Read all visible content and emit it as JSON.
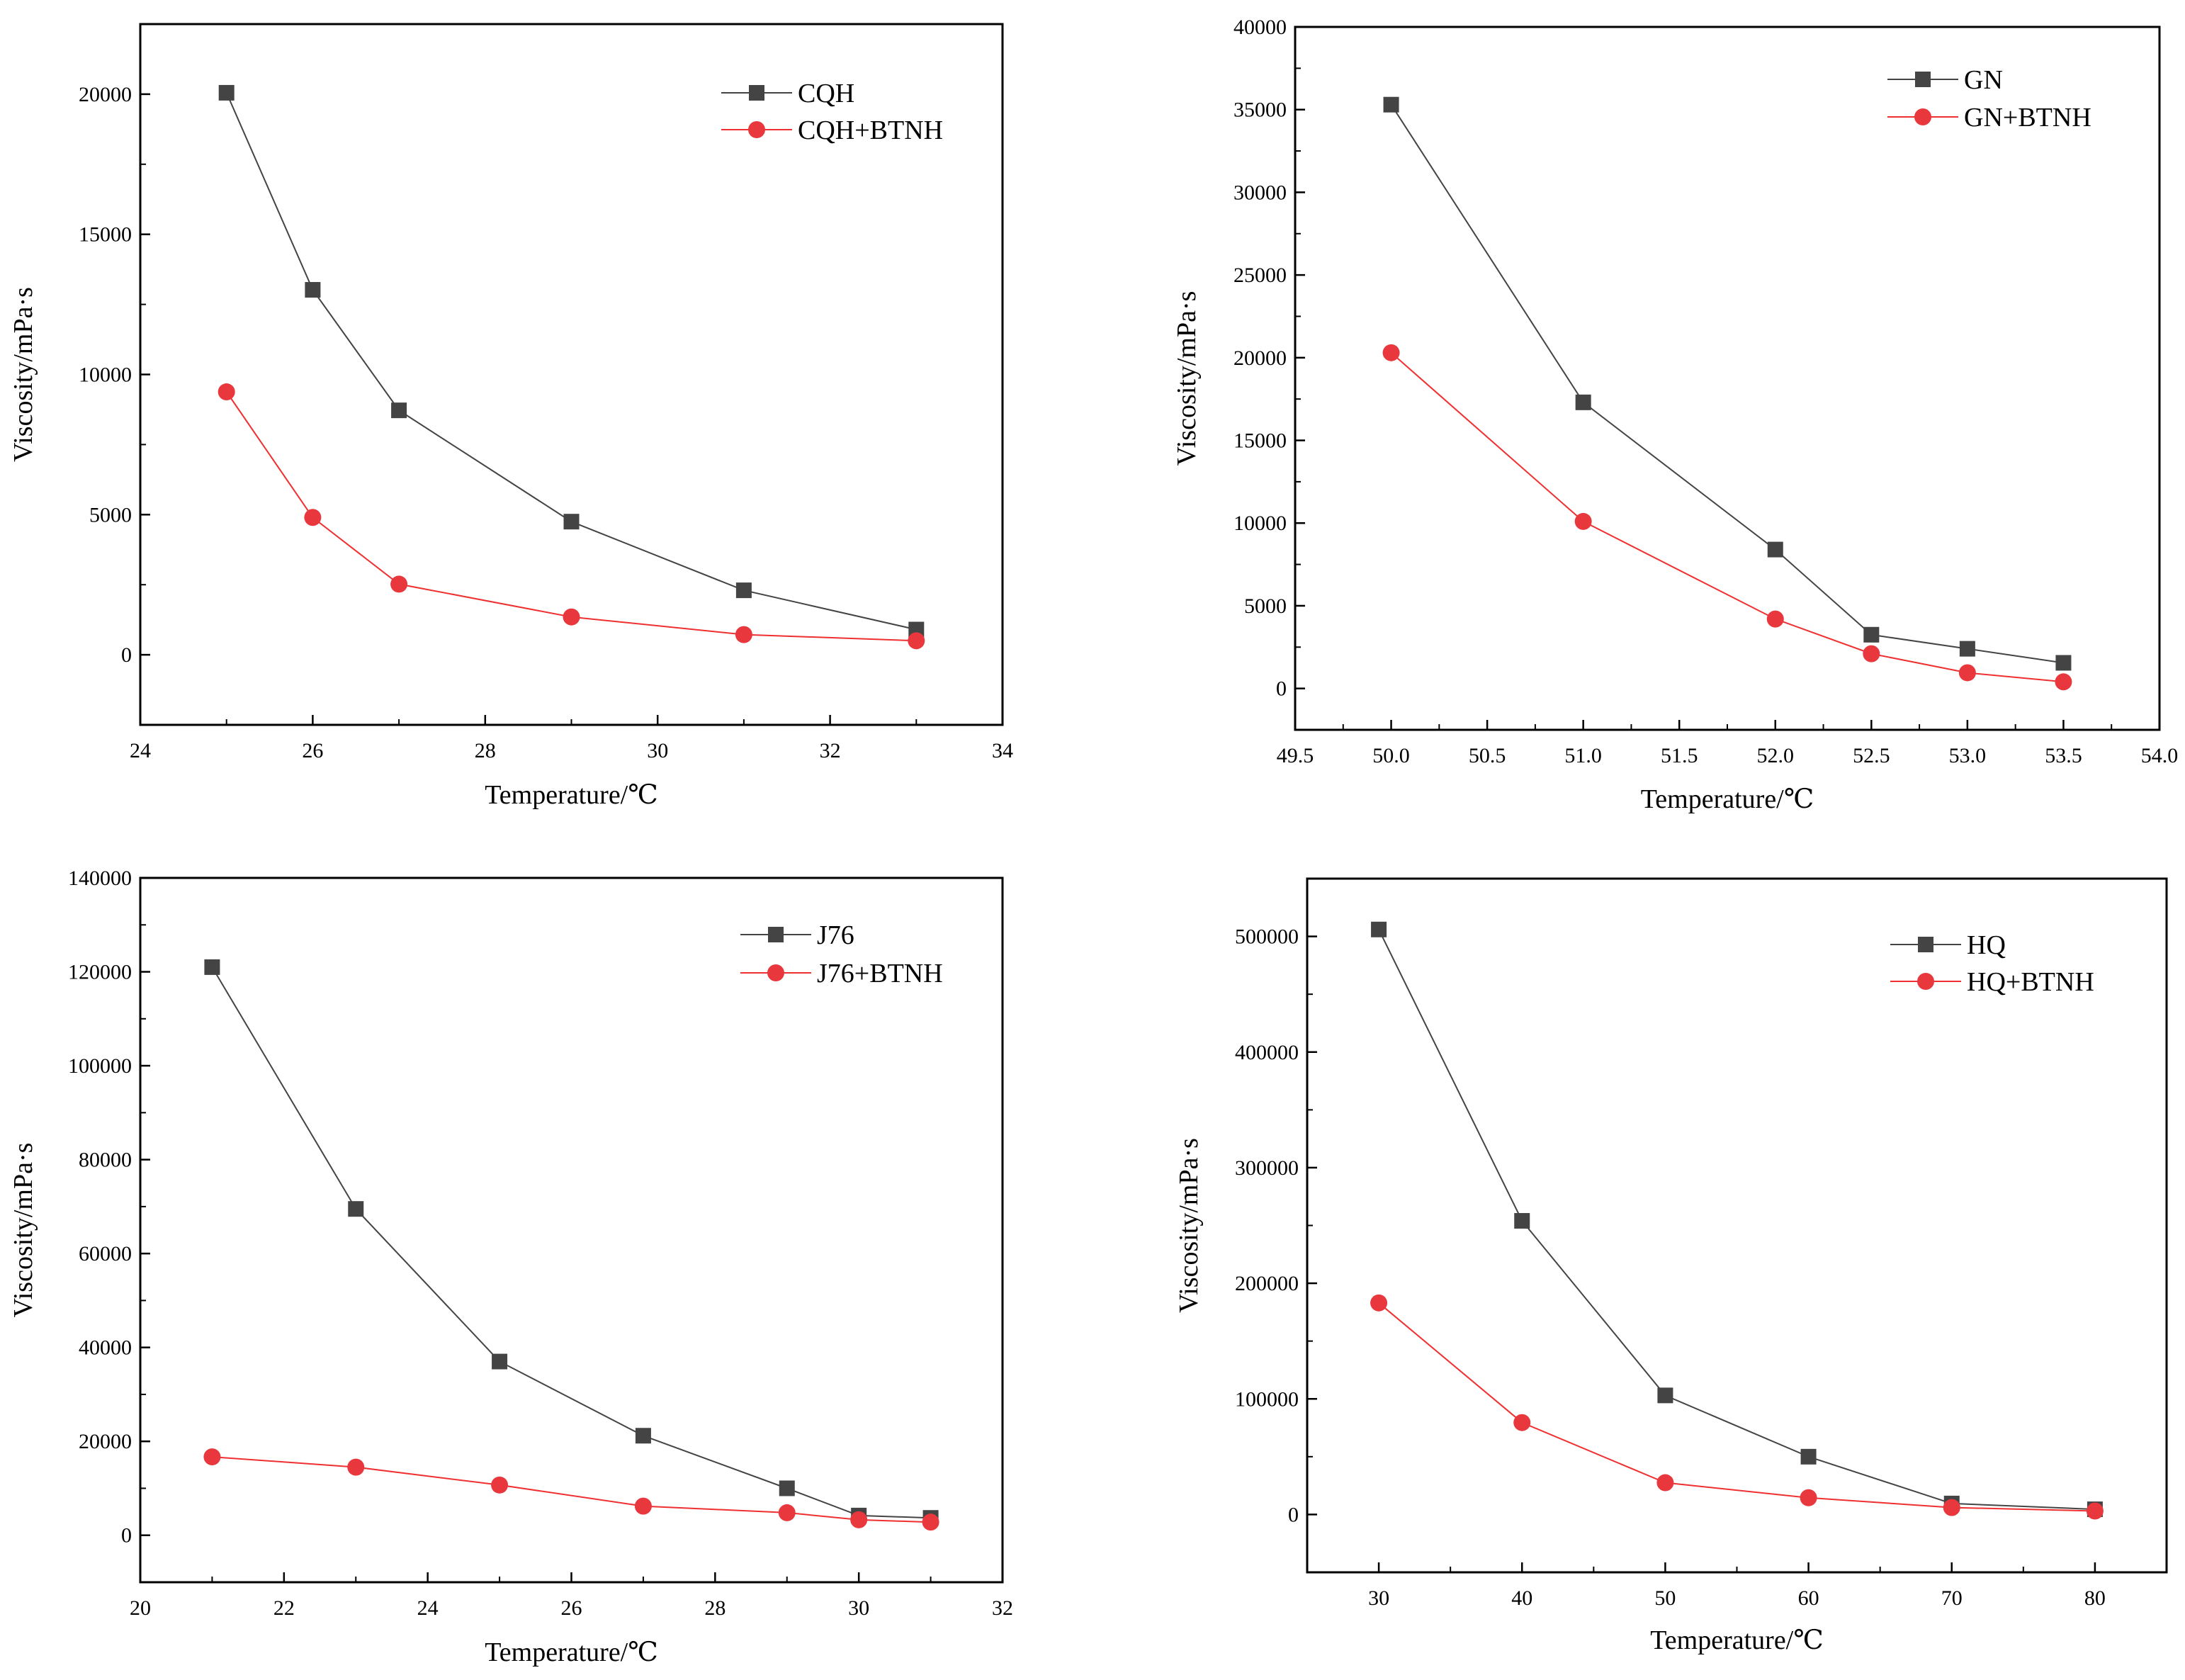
{
  "colors": {
    "series_black": "#444444",
    "series_red": "#e8383d",
    "line_red": "#f03030",
    "frame": "#000000"
  },
  "chart_data": [
    {
      "type": "line",
      "xlabel": "Temperature/℃",
      "ylabel": "Viscosity/mPa·s",
      "xlim": [
        24,
        34
      ],
      "ylim": [
        -2500,
        22500
      ],
      "xticks": [
        24,
        26,
        28,
        30,
        32,
        34
      ],
      "xtick_labels": [
        "24",
        "26",
        "28",
        "30",
        "32",
        "34"
      ],
      "yticks": [
        0,
        5000,
        10000,
        15000,
        20000
      ],
      "ytick_labels": [
        "0",
        "5000",
        "10000",
        "15000",
        "20000"
      ],
      "legend_position": "top-right",
      "series": [
        {
          "name": "CQH",
          "marker": "square",
          "x": [
            25,
            26,
            27,
            29,
            31,
            33
          ],
          "y": [
            20050,
            13020,
            8720,
            4750,
            2300,
            900
          ]
        },
        {
          "name": "CQH+BTNH",
          "marker": "circle",
          "x": [
            25,
            26,
            27,
            29,
            31,
            33
          ],
          "y": [
            9380,
            4900,
            2520,
            1350,
            720,
            500
          ]
        }
      ]
    },
    {
      "type": "line",
      "xlabel": "Temperature/℃",
      "ylabel": "Viscosity/mPa·s",
      "xlim": [
        49.5,
        54.0
      ],
      "ylim": [
        -2500,
        40000
      ],
      "xticks": [
        49.5,
        50.0,
        50.5,
        51.0,
        51.5,
        52.0,
        52.5,
        53.0,
        53.5,
        54.0
      ],
      "xtick_labels": [
        "49.5",
        "50.0",
        "50.5",
        "51.0",
        "51.5",
        "52.0",
        "52.5",
        "53.0",
        "53.5",
        "54.0"
      ],
      "yticks": [
        0,
        5000,
        10000,
        15000,
        20000,
        25000,
        30000,
        35000,
        40000
      ],
      "ytick_labels": [
        "0",
        "5000",
        "10000",
        "15000",
        "20000",
        "25000",
        "30000",
        "35000",
        "40000"
      ],
      "legend_position": "top-right",
      "series": [
        {
          "name": "GN",
          "marker": "square",
          "x": [
            50.0,
            51.0,
            52.0,
            52.5,
            53.0,
            53.5
          ],
          "y": [
            35300,
            17300,
            8400,
            3250,
            2400,
            1550
          ]
        },
        {
          "name": "GN+BTNH",
          "marker": "circle",
          "x": [
            50.0,
            51.0,
            52.0,
            52.5,
            53.0,
            53.5
          ],
          "y": [
            20300,
            10100,
            4200,
            2100,
            950,
            400
          ]
        }
      ]
    },
    {
      "type": "line",
      "xlabel": "Temperature/℃",
      "ylabel": "Viscosity/mPa·s",
      "xlim": [
        20,
        32
      ],
      "ylim": [
        -10000,
        140000
      ],
      "xticks": [
        20,
        22,
        24,
        26,
        28,
        30,
        32
      ],
      "xtick_labels": [
        "20",
        "22",
        "24",
        "26",
        "28",
        "30",
        "32"
      ],
      "yticks": [
        0,
        20000,
        40000,
        60000,
        80000,
        100000,
        120000,
        140000
      ],
      "ytick_labels": [
        "0",
        "20000",
        "40000",
        "60000",
        "80000",
        "100000",
        "120000",
        "140000"
      ],
      "legend_position": "top-right",
      "series": [
        {
          "name": "J76",
          "marker": "square",
          "x": [
            21,
            23,
            25,
            27,
            29,
            30,
            31
          ],
          "y": [
            121000,
            69500,
            37000,
            21200,
            10000,
            4200,
            3700
          ]
        },
        {
          "name": "J76+BTNH",
          "marker": "circle",
          "x": [
            21,
            23,
            25,
            27,
            29,
            30,
            31
          ],
          "y": [
            16700,
            14500,
            10700,
            6200,
            4800,
            3300,
            2800
          ]
        }
      ]
    },
    {
      "type": "line",
      "xlabel": "Temperature/℃",
      "ylabel": "Viscosity/mPa·s",
      "xlim": [
        25,
        85
      ],
      "ylim": [
        -50000,
        550000
      ],
      "xticks": [
        30,
        40,
        50,
        60,
        70,
        80
      ],
      "xtick_labels": [
        "30",
        "40",
        "50",
        "60",
        "70",
        "80"
      ],
      "yticks": [
        0,
        100000,
        200000,
        300000,
        400000,
        500000
      ],
      "ytick_labels": [
        "0",
        "100000",
        "200000",
        "300000",
        "400000",
        "500000"
      ],
      "legend_position": "top-right",
      "series": [
        {
          "name": "HQ",
          "marker": "square",
          "x": [
            30,
            40,
            50,
            60,
            70,
            80
          ],
          "y": [
            506000,
            254000,
            103000,
            50000,
            9500,
            4500
          ]
        },
        {
          "name": "HQ+BTNH",
          "marker": "circle",
          "x": [
            30,
            40,
            50,
            60,
            70,
            80
          ],
          "y": [
            183000,
            79500,
            27500,
            14500,
            6000,
            3000
          ]
        }
      ]
    }
  ]
}
